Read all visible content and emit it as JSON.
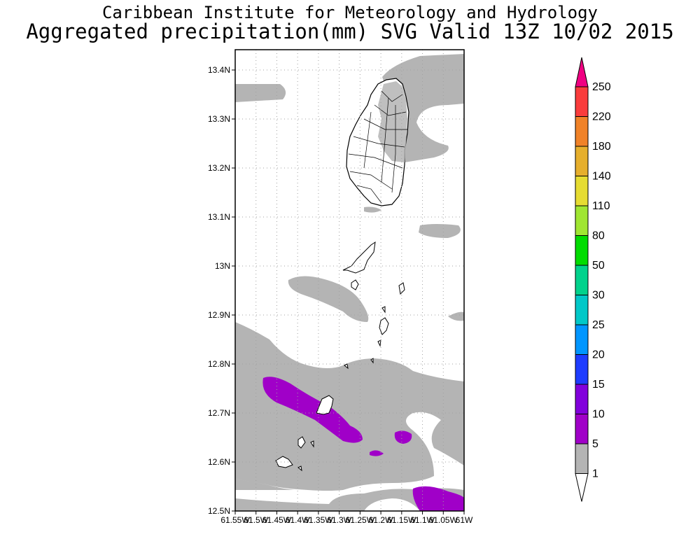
{
  "header": {
    "institute": "Caribbean Institute for Meteorology and Hydrology",
    "product": "Aggregated precipitation(mm) SVG Valid 13Z 10/02 2015"
  },
  "map": {
    "lat_labels": [
      "13.4N",
      "13.3N",
      "13.2N",
      "13.1N",
      "13N",
      "12.9N",
      "12.8N",
      "12.7N",
      "12.6N",
      "12.5N"
    ],
    "lon_labels": [
      "61.55W",
      "61.5W",
      "61.45W",
      "61.4W",
      "61.35W",
      "61.3W",
      "61.25W",
      "61.2W",
      "61.15W",
      "61.1W",
      "61.05W",
      "61W"
    ],
    "lon_range": [
      -61.55,
      -61.0
    ],
    "lat_range": [
      12.5,
      13.45
    ]
  },
  "legend": {
    "labels": [
      "1",
      "5",
      "10",
      "15",
      "20",
      "25",
      "30",
      "50",
      "80",
      "110",
      "140",
      "180",
      "220",
      "250"
    ],
    "colors": [
      "#b4b4b4",
      "#a000c8",
      "#8200dc",
      "#1e3cff",
      "#0096ff",
      "#00c8c8",
      "#00d28c",
      "#00dc00",
      "#a0e632",
      "#e6dc32",
      "#e6af2d",
      "#f08228",
      "#fa3c3c",
      "#f00082"
    ]
  },
  "colors": {
    "rain_1_5": "#b4b4b4",
    "rain_5_10": "#a000c8",
    "coast": "#000000",
    "grid": "#a0a0a0"
  }
}
